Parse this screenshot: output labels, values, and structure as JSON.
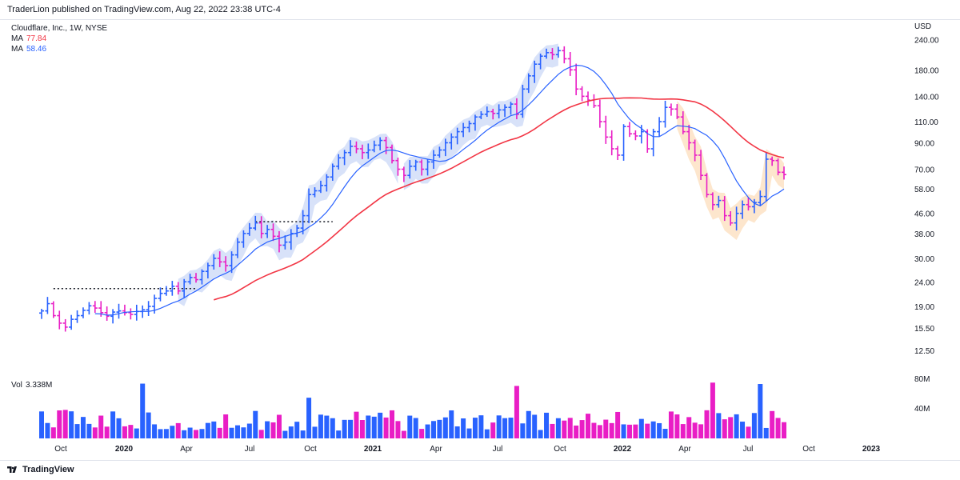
{
  "header": {
    "text": "TraderLion published on TradingView.com, Aug 22, 2022 23:38 UTC-4"
  },
  "legend": {
    "symbol": "Cloudflare, Inc., 1W, NYSE",
    "ma1_label": "MA",
    "ma1_value": "77.84",
    "ma1_color": "#f23645",
    "ma2_label": "MA",
    "ma2_value": "58.46",
    "ma2_color": "#2962ff"
  },
  "volume_label": {
    "label": "Vol",
    "value": "3.338M",
    "color": "#e91ec5"
  },
  "footer": {
    "brand": "TradingView"
  },
  "colors": {
    "up": "#2962ff",
    "down": "#e91ec5",
    "ma_slow": "#f23645",
    "ma_fast": "#2962ff",
    "highlight": "#c7d6f7",
    "highlight2": "#fde0c0"
  },
  "chart_data": {
    "type": "line",
    "title": "Cloudflare, Inc., 1W, NYSE",
    "price_axis_label": "USD",
    "y_scale": "log",
    "y_ticks": [
      "240.00",
      "180.00",
      "140.00",
      "110.00",
      "90.00",
      "70.00",
      "58.00",
      "46.00",
      "38.00",
      "30.00",
      "24.00",
      "19.00",
      "15.50",
      "12.50"
    ],
    "volume_ticks": [
      "80M",
      "40M"
    ],
    "x_ticks": [
      "Oct",
      "2020",
      "Apr",
      "Jul",
      "Oct",
      "2021",
      "Apr",
      "Jul",
      "Oct",
      "2022",
      "Apr",
      "Jul",
      "Oct",
      "2023"
    ],
    "weekly_close": [
      18.2,
      19.5,
      17.4,
      16.2,
      15.6,
      16.8,
      17.4,
      18.3,
      19.1,
      18.7,
      17.9,
      17.3,
      18.0,
      18.2,
      17.9,
      17.6,
      18.1,
      18.4,
      19.0,
      20.5,
      21.5,
      22.0,
      23.0,
      22.0,
      24.0,
      25.0,
      24.5,
      26.5,
      28.0,
      30.0,
      29.0,
      28.0,
      31.0,
      35.0,
      38.0,
      40.0,
      42.0,
      38.0,
      39.5,
      37.0,
      34.0,
      35.0,
      38.0,
      40.0,
      45.0,
      55.0,
      57.0,
      60.0,
      65.0,
      72.0,
      78.0,
      82.0,
      87.0,
      85.0,
      82.0,
      84.0,
      88.0,
      92.0,
      86.0,
      76.0,
      70.0,
      66.0,
      72.0,
      75.0,
      70.0,
      75.0,
      80.0,
      84.0,
      90.0,
      95.0,
      100.0,
      104.0,
      108.0,
      115.0,
      118.0,
      121.0,
      119.0,
      123.0,
      126.0,
      130.0,
      118.0,
      150.0,
      170.0,
      190.0,
      205.0,
      212.0,
      208.0,
      216.0,
      200.0,
      180.0,
      150.0,
      140.0,
      135.0,
      128.0,
      110.0,
      95.0,
      85.0,
      80.0,
      105.0,
      98.0,
      96.0,
      100.0,
      85.0,
      100.0,
      110.0,
      126.0,
      124.0,
      115.0,
      100.0,
      90.0,
      80.0,
      66.0,
      55.0,
      50.0,
      52.0,
      45.0,
      42.0,
      46.0,
      50.0,
      49.0,
      51.0,
      54.0,
      77.0,
      76.0,
      68.0,
      66.5
    ],
    "series": [
      {
        "name": "MA",
        "values": [
          77.84
        ]
      },
      {
        "name": "MA",
        "values": [
          58.46
        ]
      }
    ],
    "volume_last": "3.338M"
  }
}
